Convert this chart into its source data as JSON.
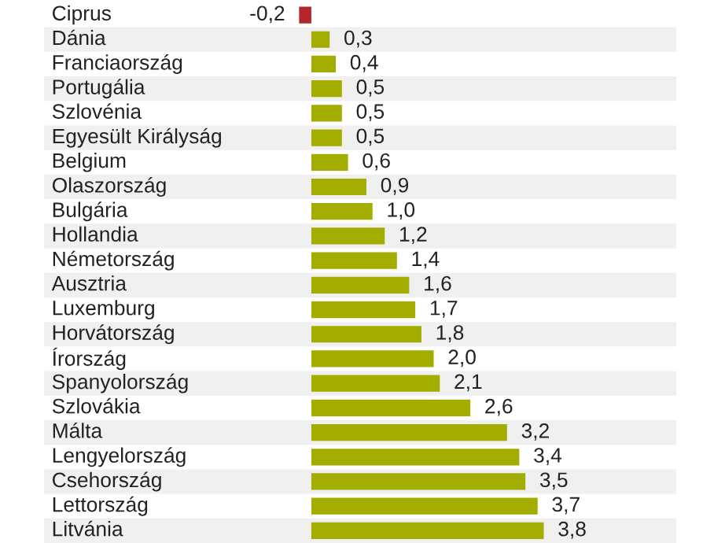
{
  "chart_data": {
    "type": "bar",
    "orientation": "horizontal",
    "categories": [
      "Ciprus",
      "Dánia",
      "Franciaország",
      "Portugália",
      "Szlovénia",
      "Egyesült Királyság",
      "Belgium",
      "Olaszország",
      "Bulgária",
      "Hollandia",
      "Németország",
      "Ausztria",
      "Luxemburg",
      "Horvátország",
      "Írország",
      "Spanyolország",
      "Szlovákia",
      "Málta",
      "Lengyelország",
      "Csehország",
      "Lettország",
      "Litvánia"
    ],
    "values": [
      -0.2,
      0.3,
      0.4,
      0.5,
      0.5,
      0.5,
      0.6,
      0.9,
      1.0,
      1.2,
      1.4,
      1.6,
      1.7,
      1.8,
      2.0,
      2.1,
      2.6,
      3.2,
      3.4,
      3.5,
      3.7,
      3.8
    ],
    "value_labels": [
      "-0,2",
      "0,3",
      "0,4",
      "0,5",
      "0,5",
      "0,5",
      "0,6",
      "0,9",
      "1,0",
      "1,2",
      "1,4",
      "1,6",
      "1,7",
      "1,8",
      "2,0",
      "2,1",
      "2,6",
      "3,2",
      "3,4",
      "3,5",
      "3,7",
      "3,8"
    ],
    "colors": [
      "#b5262b",
      "#a3ad00",
      "#a3ad00",
      "#a3ad00",
      "#a3ad00",
      "#a3ad00",
      "#a3ad00",
      "#a3ad00",
      "#a3ad00",
      "#a3ad00",
      "#a3ad00",
      "#a3ad00",
      "#a3ad00",
      "#a3ad00",
      "#a3ad00",
      "#a3ad00",
      "#a3ad00",
      "#a3ad00",
      "#a3ad00",
      "#a3ad00",
      "#a3ad00",
      "#a3ad00"
    ],
    "data_labels": false
  }
}
